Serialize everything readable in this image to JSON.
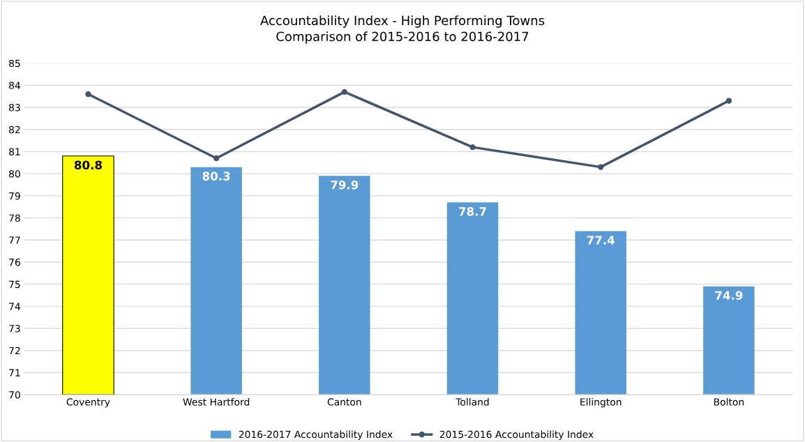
{
  "chart_data": {
    "type": "bar",
    "title": "Accountability Index - High Performing Towns\nComparison of 2015-2016 to 2016-2017",
    "categories": [
      "Coventry",
      "West Hartford",
      "Canton",
      "Tolland",
      "Ellington",
      "Bolton"
    ],
    "series": [
      {
        "name": "2016-2017 Accountability Index",
        "colors": [
          "#ffff00",
          "#5b9bd5",
          "#5b9bd5",
          "#5b9bd5",
          "#5b9bd5",
          "#5b9bd5"
        ],
        "color": "#5b9bd5",
        "values": [
          80.8,
          80.3,
          79.9,
          78.7,
          77.4,
          74.9
        ],
        "data_labels": true
      },
      {
        "name": "2015-2016 Accountability Index",
        "type": "line",
        "color": "#44546a",
        "marker": "circle",
        "values": [
          83.6,
          80.7,
          83.7,
          81.2,
          80.3,
          83.3
        ]
      }
    ],
    "ylim": [
      70,
      85
    ],
    "yticks": [
      70,
      71,
      72,
      73,
      74,
      75,
      76,
      77,
      78,
      79,
      80,
      81,
      82,
      83,
      84,
      85
    ],
    "grid": "y",
    "legend": "bottom"
  }
}
